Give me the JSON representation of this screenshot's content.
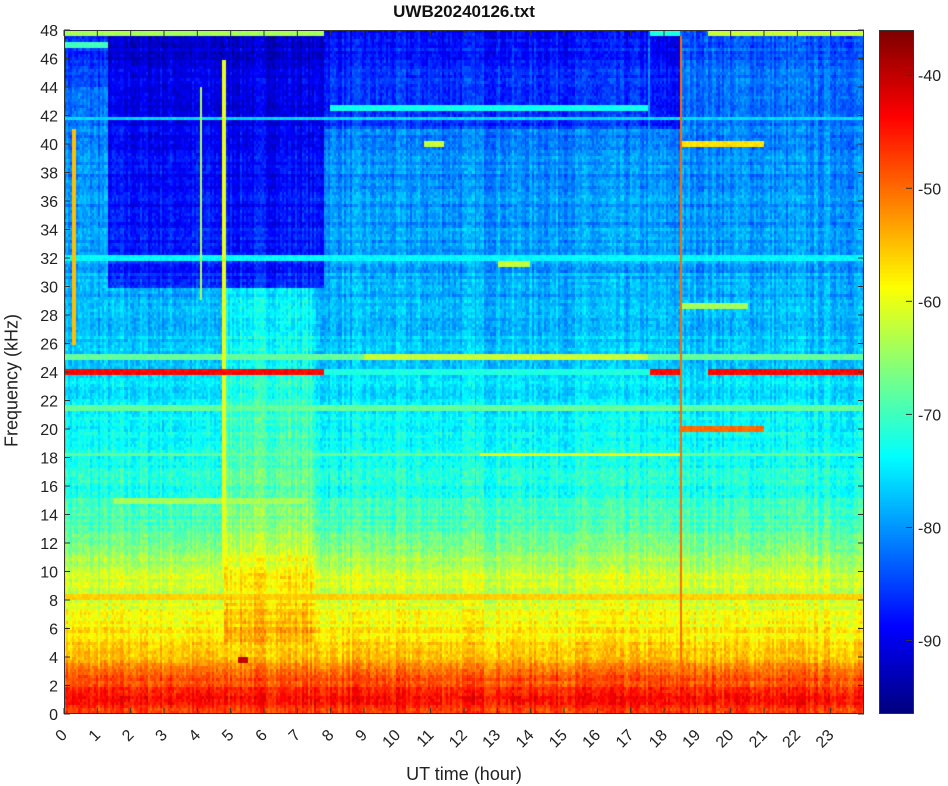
{
  "chart_data": {
    "type": "heatmap",
    "title": "UWB20240126.txt",
    "xlabel": "UT time (hour)",
    "ylabel": "Frequency (kHz)",
    "xlim": [
      0,
      24
    ],
    "ylim": [
      0,
      48
    ],
    "xticks": [
      0,
      1,
      2,
      3,
      4,
      5,
      6,
      7,
      8,
      9,
      10,
      11,
      12,
      13,
      14,
      15,
      16,
      17,
      18,
      19,
      20,
      21,
      22,
      23
    ],
    "yticks": [
      0,
      2,
      4,
      6,
      8,
      10,
      12,
      14,
      16,
      18,
      20,
      22,
      24,
      26,
      28,
      30,
      32,
      34,
      36,
      38,
      40,
      42,
      44,
      46,
      48
    ],
    "colorbar": {
      "colormap": "jet",
      "clim": [
        -96.5,
        -36
      ],
      "ticks": [
        -40,
        -50,
        -60,
        -70,
        -80,
        -90
      ]
    },
    "background_profile_db": {
      "freq_khz": [
        0,
        1,
        2,
        3,
        4,
        6,
        8,
        10,
        12,
        16,
        20,
        24,
        30,
        40,
        48
      ],
      "level_db": [
        -48,
        -45,
        -47,
        -50,
        -54,
        -58,
        -61,
        -62,
        -68,
        -72,
        -74,
        -76,
        -79,
        -81,
        -84
      ]
    },
    "regions": [
      {
        "t": [
          1.3,
          7.8
        ],
        "f": [
          30,
          47.5
        ],
        "delta_db": -8
      },
      {
        "t": [
          0,
          1.3
        ],
        "f": [
          44,
          47.5
        ],
        "delta_db": -3
      },
      {
        "t": [
          7.8,
          17.5
        ],
        "f": [
          41,
          48
        ],
        "delta_db": -4
      },
      {
        "t": [
          4.8,
          7.5
        ],
        "f": [
          5,
          30
        ],
        "delta_db": 4
      },
      {
        "t": [
          17.6,
          18.5
        ],
        "f": [
          41,
          48
        ],
        "delta_db": -6
      }
    ],
    "lines": [
      {
        "f": 24,
        "t": [
          0,
          7.8
        ],
        "db": -44
      },
      {
        "f": 24,
        "t": [
          17.6,
          18.5
        ],
        "db": -44
      },
      {
        "f": 24,
        "t": [
          19.3,
          24
        ],
        "db": -44
      },
      {
        "f": 24,
        "t": [
          7.8,
          17.6
        ],
        "db": -72
      },
      {
        "f": 25,
        "t": [
          0,
          24
        ],
        "db": -68
      },
      {
        "f": 25,
        "t": [
          9,
          17.5
        ],
        "db": -62
      },
      {
        "f": 18.2,
        "t": [
          12.5,
          18.5
        ],
        "db": -60
      },
      {
        "f": 18.2,
        "t": [
          0,
          24
        ],
        "db": -68
      },
      {
        "f": 20,
        "t": [
          18.5,
          21
        ],
        "db": -50
      },
      {
        "f": 40,
        "t": [
          18.5,
          21
        ],
        "db": -57
      },
      {
        "f": 40,
        "t": [
          10.8,
          11.4
        ],
        "db": -62
      },
      {
        "f": 42.6,
        "t": [
          8,
          17.5
        ],
        "db": -73
      },
      {
        "f": 8.2,
        "t": [
          0,
          24
        ],
        "db": -56
      },
      {
        "f": 21.5,
        "t": [
          0,
          24
        ],
        "db": -68
      },
      {
        "f": 47.8,
        "t": [
          0,
          7.8
        ],
        "db": -64
      },
      {
        "f": 47.8,
        "t": [
          19.3,
          24
        ],
        "db": -62
      },
      {
        "f": 47.8,
        "t": [
          17.6,
          18.5
        ],
        "db": -72
      },
      {
        "f": 47,
        "t": [
          0,
          1.3
        ],
        "db": -70
      },
      {
        "f": 41.8,
        "t": [
          0,
          24
        ],
        "db": -76
      },
      {
        "f": 32,
        "t": [
          0,
          24
        ],
        "db": -74
      },
      {
        "f": 15,
        "t": [
          1.5,
          7.2
        ],
        "db": -64
      },
      {
        "f": 3.8,
        "t": [
          5.2,
          5.5
        ],
        "db": -40
      },
      {
        "f": 31.6,
        "t": [
          13,
          14
        ],
        "db": -62
      },
      {
        "f": 28.7,
        "t": [
          18.5,
          20.5
        ],
        "db": -64
      }
    ],
    "vertical_events": [
      {
        "t": 18.5,
        "f": [
          0,
          47.5
        ],
        "db": -50
      },
      {
        "t": 0.3,
        "f": [
          26,
          41
        ],
        "db": -55
      },
      {
        "t": 4.8,
        "f": [
          10,
          46
        ],
        "db": -60
      },
      {
        "t": 4.1,
        "f": [
          29,
          44
        ],
        "db": -64
      }
    ]
  }
}
